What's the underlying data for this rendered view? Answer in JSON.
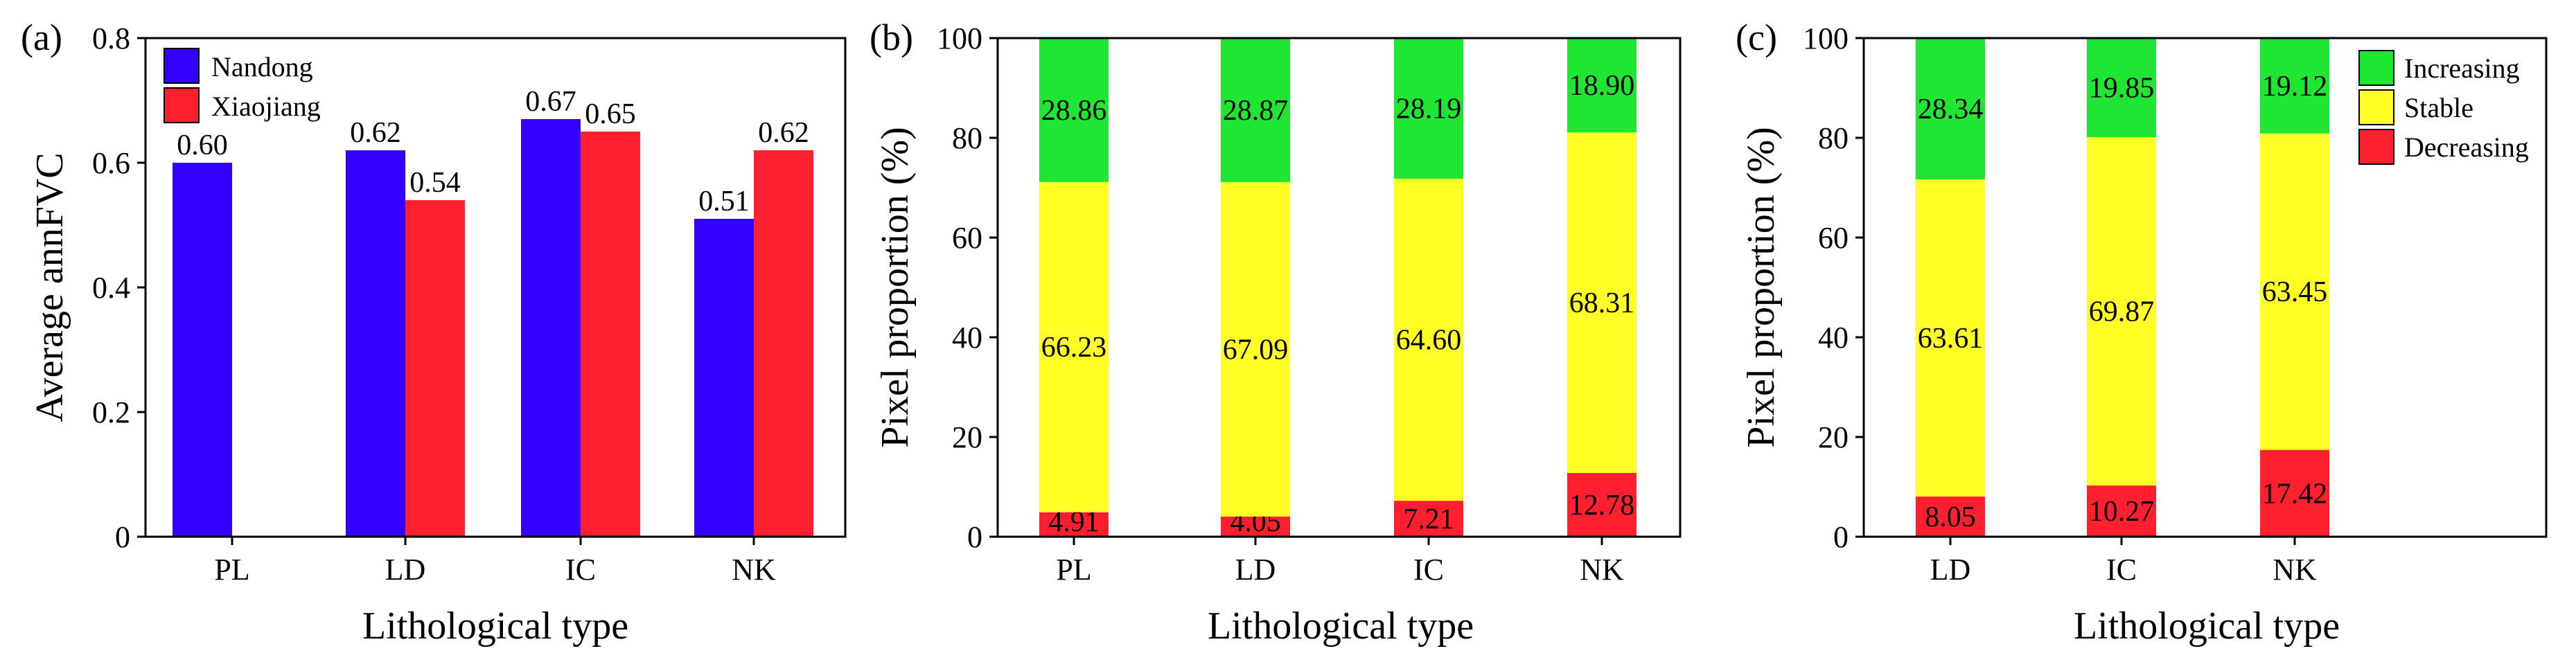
{
  "chart_data": [
    {
      "panel": "(a)",
      "type": "bar",
      "ylabel": "Average annFVC",
      "xlabel": "Lithological type",
      "ylim": [
        0,
        0.8
      ],
      "yticks": [
        0,
        0.2,
        0.4,
        0.6,
        0.8
      ],
      "ytick_labels": [
        "0",
        "0.2",
        "0.4",
        "0.6",
        "0.8"
      ],
      "categories": [
        "PL",
        "LD",
        "IC",
        "NK"
      ],
      "series": [
        {
          "name": "Nandong",
          "color": "#3300ff",
          "values": [
            0.6,
            0.62,
            0.67,
            0.51
          ],
          "labels": [
            "0.60",
            "0.62",
            "0.67",
            "0.51"
          ]
        },
        {
          "name": "Xiaojiang",
          "color": "#ff1f2e",
          "values": [
            null,
            0.54,
            0.65,
            0.62
          ],
          "labels": [
            "",
            "0.54",
            "0.65",
            "0.62"
          ]
        }
      ],
      "legend": "top-left"
    },
    {
      "panel": "(b)",
      "type": "stacked-bar",
      "ylabel": "Pixel proportion (%)",
      "xlabel": "Lithological type",
      "ylim": [
        0,
        100
      ],
      "yticks": [
        0,
        20,
        40,
        60,
        80,
        100
      ],
      "ytick_labels": [
        "0",
        "20",
        "40",
        "60",
        "80",
        "100"
      ],
      "categories": [
        "PL",
        "LD",
        "IC",
        "NK"
      ],
      "series": [
        {
          "name": "Decreasing",
          "color": "#ff1f2e",
          "values": [
            4.91,
            4.05,
            7.21,
            12.78
          ],
          "labels": [
            "4.91",
            "4.05",
            "7.21",
            "12.78"
          ]
        },
        {
          "name": "Stable",
          "color": "#ffff26",
          "values": [
            66.23,
            67.09,
            64.6,
            68.31
          ],
          "labels": [
            "66.23",
            "67.09",
            "64.60",
            "68.31"
          ]
        },
        {
          "name": "Increasing",
          "color": "#1ee633",
          "values": [
            28.86,
            28.87,
            28.19,
            18.9
          ],
          "labels": [
            "28.86",
            "28.87",
            "28.19",
            "18.90"
          ]
        }
      ]
    },
    {
      "panel": "(c)",
      "type": "stacked-bar",
      "ylabel": "Pixel proportion (%)",
      "xlabel": "Lithological type",
      "ylim": [
        0,
        100
      ],
      "yticks": [
        0,
        20,
        40,
        60,
        80,
        100
      ],
      "ytick_labels": [
        "0",
        "20",
        "40",
        "60",
        "80",
        "100"
      ],
      "categories": [
        "LD",
        "IC",
        "NK"
      ],
      "series": [
        {
          "name": "Decreasing",
          "color": "#ff1f2e",
          "values": [
            8.05,
            10.27,
            17.42
          ],
          "labels": [
            "8.05",
            "10.27",
            "17.42"
          ]
        },
        {
          "name": "Stable",
          "color": "#ffff26",
          "values": [
            63.61,
            69.87,
            63.45
          ],
          "labels": [
            "63.61",
            "69.87",
            "63.45"
          ]
        },
        {
          "name": "Increasing",
          "color": "#1ee633",
          "values": [
            28.34,
            19.85,
            19.12
          ],
          "labels": [
            "28.34",
            "19.85",
            "19.12"
          ]
        }
      ],
      "legend_order": [
        "Increasing",
        "Stable",
        "Decreasing"
      ],
      "legend": "top-right"
    }
  ]
}
